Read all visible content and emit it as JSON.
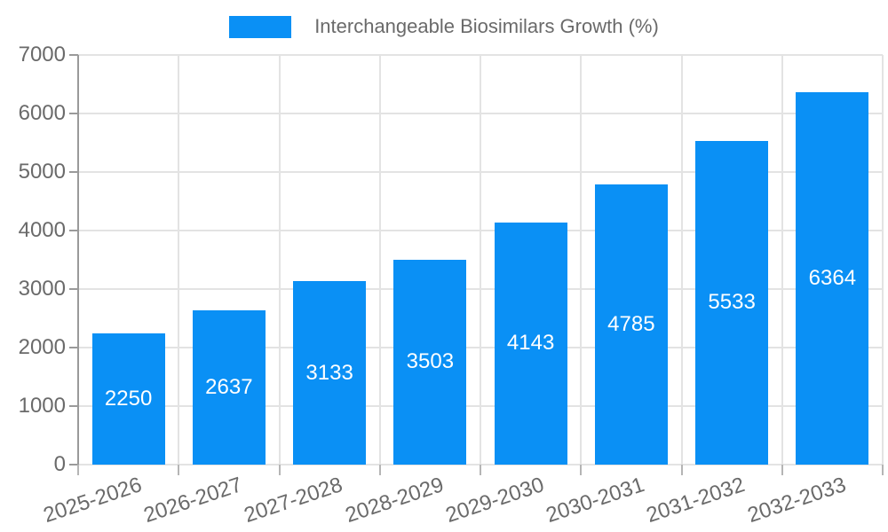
{
  "chart_data": {
    "type": "bar",
    "title": "Interchangeable Biosimilars Growth (%)",
    "categories": [
      "2025-2026",
      "2026-2027",
      "2027-2028",
      "2028-2029",
      "2029-2030",
      "2030-2031",
      "2031-2032",
      "2032-2033"
    ],
    "values": [
      2250,
      2637,
      3133,
      3503,
      4143,
      4785,
      5533,
      6364
    ],
    "ylim": [
      0,
      7000
    ],
    "ytick_step": 1000,
    "yticks": [
      0,
      1000,
      2000,
      3000,
      4000,
      5000,
      6000,
      7000
    ],
    "grid": true,
    "legend_position": "top",
    "xlabel": "",
    "ylabel": "",
    "colors": {
      "bar": "#0a90f5",
      "value_label": "#ffffff",
      "axis_text": "#6a6a6a",
      "gridline": "#e3e3e3",
      "axis_line": "#9a9a9a",
      "x_tick": "#b5b5b5"
    }
  }
}
